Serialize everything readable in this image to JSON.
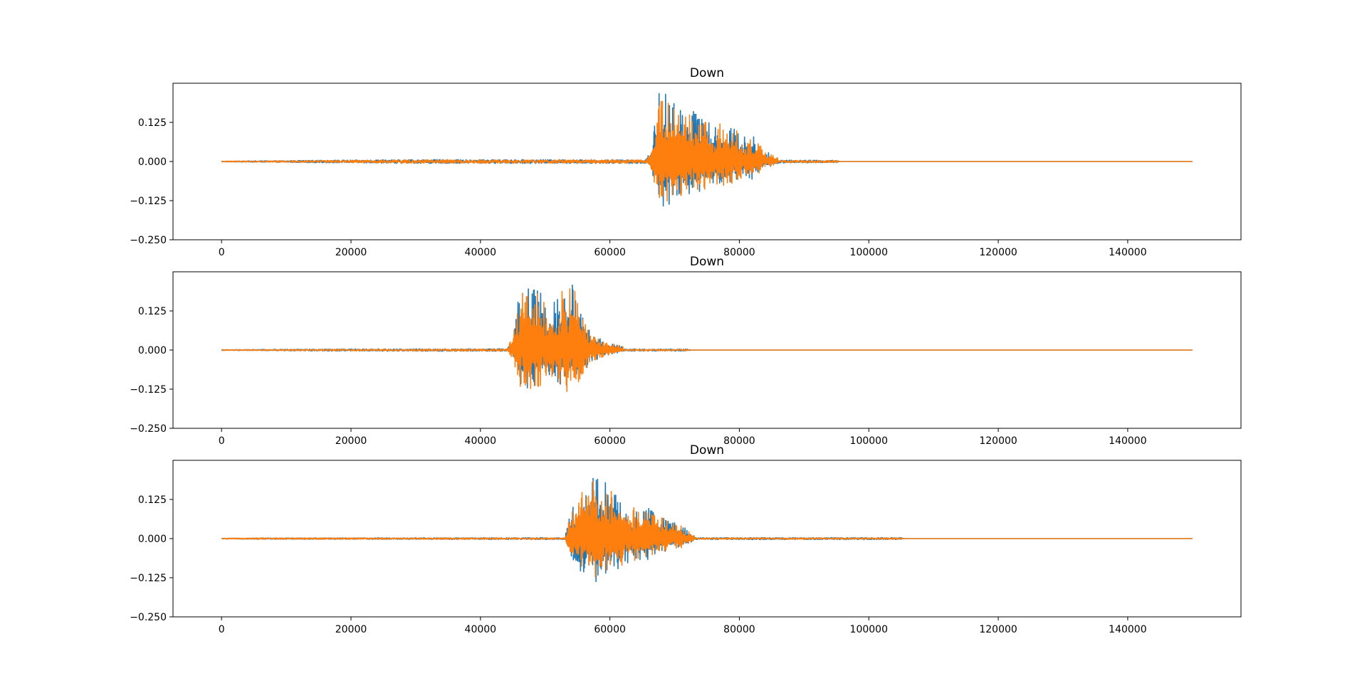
{
  "chart_data": [
    {
      "type": "line",
      "title": "Down",
      "xlabel": "",
      "ylabel": "",
      "xlim": [
        -7500,
        157500
      ],
      "ylim": [
        -0.25,
        0.25
      ],
      "xticks": [
        0,
        20000,
        40000,
        60000,
        80000,
        100000,
        120000,
        140000
      ],
      "xtick_labels": [
        "0",
        "20000",
        "40000",
        "60000",
        "80000",
        "100000",
        "120000",
        "140000"
      ],
      "yticks": [
        0.125,
        0.0,
        -0.125,
        -0.25
      ],
      "ytick_labels": [
        "0.125",
        "0.000",
        "−0.125",
        "−0.250"
      ],
      "grid": false,
      "legend": "none",
      "series": [
        {
          "color": "#1f77b4",
          "length": 150000,
          "noise_floor": [
            [
              0,
              0.001
            ],
            [
              16000,
              0.004
            ],
            [
              30000,
              0.006
            ],
            [
              66000,
              0.006
            ],
            [
              95000,
              0.004
            ],
            [
              95500,
              0.0
            ]
          ],
          "envelope": [
            [
              65500,
              0.0
            ],
            [
              66500,
              0.05
            ],
            [
              67500,
              0.2
            ],
            [
              69000,
              0.19
            ],
            [
              72000,
              0.15
            ],
            [
              75000,
              0.13
            ],
            [
              78000,
              0.1
            ],
            [
              82000,
              0.08
            ],
            [
              84000,
              0.03
            ],
            [
              86000,
              0.01
            ]
          ]
        },
        {
          "color": "#ff7f0e",
          "length": 150000,
          "noise_floor": [
            [
              0,
              0.001
            ],
            [
              16000,
              0.003
            ],
            [
              30000,
              0.005
            ],
            [
              66000,
              0.005
            ],
            [
              95000,
              0.003
            ],
            [
              95500,
              0.0
            ]
          ],
          "envelope": [
            [
              65500,
              0.0
            ],
            [
              66500,
              0.05
            ],
            [
              67500,
              0.18
            ],
            [
              69000,
              0.18
            ],
            [
              72000,
              0.14
            ],
            [
              75000,
              0.12
            ],
            [
              78000,
              0.1
            ],
            [
              82000,
              0.07
            ],
            [
              84000,
              0.03
            ],
            [
              86000,
              0.01
            ]
          ]
        }
      ]
    },
    {
      "type": "line",
      "title": "Down",
      "xlabel": "",
      "ylabel": "",
      "xlim": [
        -7500,
        157500
      ],
      "ylim": [
        -0.25,
        0.25
      ],
      "xticks": [
        0,
        20000,
        40000,
        60000,
        80000,
        100000,
        120000,
        140000
      ],
      "xtick_labels": [
        "0",
        "20000",
        "40000",
        "60000",
        "80000",
        "100000",
        "120000",
        "140000"
      ],
      "yticks": [
        0.125,
        0.0,
        -0.125,
        -0.25
      ],
      "ytick_labels": [
        "0.125",
        "0.000",
        "−0.125",
        "−0.250"
      ],
      "grid": false,
      "legend": "none",
      "series": [
        {
          "color": "#1f77b4",
          "length": 150000,
          "noise_floor": [
            [
              0,
              0.001
            ],
            [
              15000,
              0.003
            ],
            [
              44000,
              0.004
            ],
            [
              72000,
              0.003
            ],
            [
              72500,
              0.0
            ]
          ],
          "envelope": [
            [
              44000,
              0.0
            ],
            [
              45000,
              0.04
            ],
            [
              46000,
              0.16
            ],
            [
              48000,
              0.18
            ],
            [
              51000,
              0.14
            ],
            [
              54000,
              0.2
            ],
            [
              55500,
              0.12
            ],
            [
              57000,
              0.05
            ],
            [
              60000,
              0.02
            ],
            [
              62000,
              0.01
            ]
          ]
        },
        {
          "color": "#ff7f0e",
          "length": 150000,
          "noise_floor": [
            [
              0,
              0.001
            ],
            [
              15000,
              0.002
            ],
            [
              44000,
              0.003
            ],
            [
              72000,
              0.002
            ],
            [
              72500,
              0.0
            ]
          ],
          "envelope": [
            [
              44000,
              0.0
            ],
            [
              45000,
              0.04
            ],
            [
              46000,
              0.16
            ],
            [
              48000,
              0.17
            ],
            [
              51000,
              0.13
            ],
            [
              54000,
              0.2
            ],
            [
              55500,
              0.12
            ],
            [
              57000,
              0.05
            ],
            [
              60000,
              0.02
            ],
            [
              62000,
              0.01
            ]
          ]
        }
      ]
    },
    {
      "type": "line",
      "title": "Down",
      "xlabel": "",
      "ylabel": "",
      "xlim": [
        -7500,
        157500
      ],
      "ylim": [
        -0.25,
        0.25
      ],
      "xticks": [
        0,
        20000,
        40000,
        60000,
        80000,
        100000,
        120000,
        140000
      ],
      "xtick_labels": [
        "0",
        "20000",
        "40000",
        "60000",
        "80000",
        "100000",
        "120000",
        "140000"
      ],
      "yticks": [
        0.125,
        0.0,
        -0.125,
        -0.25
      ],
      "ytick_labels": [
        "0.125",
        "0.000",
        "−0.125",
        "−0.250"
      ],
      "grid": false,
      "legend": "none",
      "series": [
        {
          "color": "#1f77b4",
          "length": 150000,
          "noise_floor": [
            [
              0,
              0.001
            ],
            [
              6000,
              0.002
            ],
            [
              53000,
              0.003
            ],
            [
              105000,
              0.003
            ],
            [
              105500,
              0.0
            ]
          ],
          "envelope": [
            [
              53000,
              0.0
            ],
            [
              54000,
              0.08
            ],
            [
              55000,
              0.13
            ],
            [
              58000,
              0.19
            ],
            [
              60000,
              0.15
            ],
            [
              63000,
              0.1
            ],
            [
              66000,
              0.09
            ],
            [
              69000,
              0.05
            ],
            [
              71000,
              0.04
            ],
            [
              73000,
              0.01
            ]
          ]
        },
        {
          "color": "#ff7f0e",
          "length": 150000,
          "noise_floor": [
            [
              0,
              0.001
            ],
            [
              6000,
              0.002
            ],
            [
              53000,
              0.002
            ],
            [
              105000,
              0.002
            ],
            [
              105500,
              0.0
            ]
          ],
          "envelope": [
            [
              53000,
              0.0
            ],
            [
              54000,
              0.08
            ],
            [
              55000,
              0.12
            ],
            [
              58000,
              0.18
            ],
            [
              60000,
              0.14
            ],
            [
              63000,
              0.1
            ],
            [
              66000,
              0.08
            ],
            [
              69000,
              0.05
            ],
            [
              71000,
              0.04
            ],
            [
              73000,
              0.01
            ]
          ]
        }
      ]
    }
  ]
}
